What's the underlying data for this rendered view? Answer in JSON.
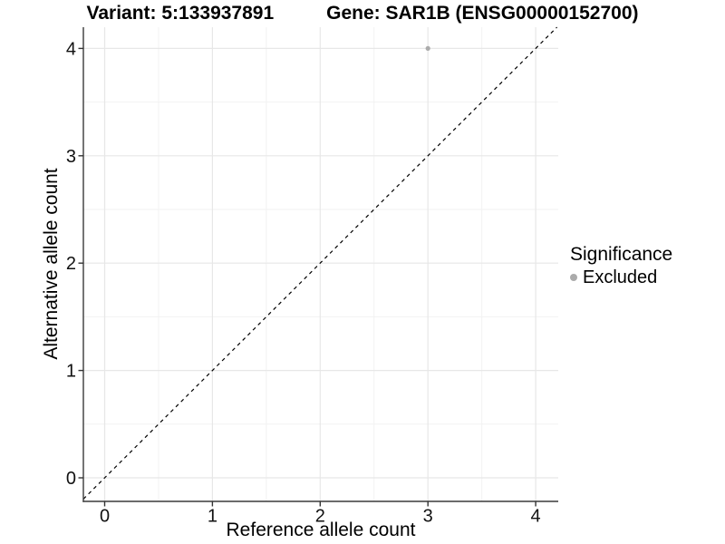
{
  "titles": {
    "variant": "Variant: 5:133937891",
    "gene": "Gene: SAR1B (ENSG00000152700)"
  },
  "axes": {
    "x_label": "Reference allele count",
    "y_label": "Alternative allele count"
  },
  "legend": {
    "title": "Significance",
    "items": [
      {
        "label": "Excluded",
        "color": "#ababab"
      }
    ]
  },
  "colors": {
    "background": "#ffffff",
    "grid_major": "#e7e7e7",
    "grid_minor": "#f2f2f2",
    "axis_line": "#3a3a3a",
    "tick_mark": "#333333",
    "tick_text": "#111111",
    "point": "#ababab",
    "reference_line": "#000000"
  },
  "chart_data": {
    "type": "scatter",
    "title": "Variant: 5:133937891   Gene: SAR1B (ENSG00000152700)",
    "xlabel": "Reference allele count",
    "ylabel": "Alternative allele count",
    "xlim": [
      -0.2,
      4.2
    ],
    "ylim": [
      -0.2,
      4.2
    ],
    "x_ticks": [
      0,
      1,
      2,
      3,
      4
    ],
    "y_ticks": [
      0,
      1,
      2,
      3,
      4
    ],
    "x_minor_gridlines": [
      0.5,
      1.5,
      2.5,
      3.5
    ],
    "y_minor_gridlines": [
      0.5,
      1.5,
      2.5,
      3.5
    ],
    "grid": true,
    "legend_position": "right",
    "series": [
      {
        "name": "Excluded",
        "color": "#ababab",
        "points": [
          {
            "x": 3,
            "y": 4
          }
        ]
      }
    ],
    "reference_line": {
      "type": "abline",
      "slope": 1,
      "intercept": 0,
      "linestyle": "dashed",
      "color": "#000000"
    }
  }
}
